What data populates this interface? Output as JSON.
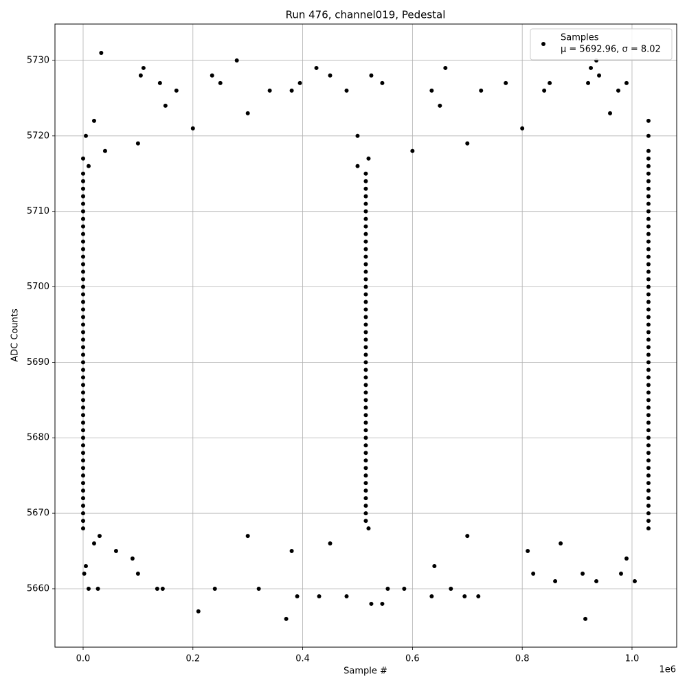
{
  "chart_data": {
    "type": "scatter",
    "title": "Run 476, channel019, Pedestal",
    "x_label": "Sample #",
    "y_label": "ADC Counts",
    "x_offset_label": "1e6",
    "xlim": [
      -51300,
      1081400
    ],
    "ylim": [
      5652.26,
      5734.82
    ],
    "xticks": [
      {
        "value": 0,
        "label": "0.0"
      },
      {
        "value": 200000,
        "label": "0.2"
      },
      {
        "value": 400000,
        "label": "0.4"
      },
      {
        "value": 600000,
        "label": "0.6"
      },
      {
        "value": 800000,
        "label": "0.8"
      },
      {
        "value": 1000000,
        "label": "1.0"
      }
    ],
    "yticks": [
      5660,
      5670,
      5680,
      5690,
      5700,
      5710,
      5720,
      5730
    ],
    "grid": true,
    "legend": "upper right",
    "annotation": "μ = 5692.96, σ = 8.02",
    "series": [
      {
        "name": "Samples",
        "color": "#000000",
        "x": [
          33000,
          280000,
          110000,
          425000,
          660000,
          935000,
          925000,
          235000,
          105000,
          450000,
          525000,
          940000,
          140000,
          250000,
          395000,
          545000,
          770000,
          850000,
          920000,
          990000,
          170000,
          340000,
          380000,
          480000,
          635000,
          725000,
          840000,
          975000,
          370000,
          915000,
          210000,
          525000,
          545000,
          390000,
          430000,
          480000,
          635000,
          695000,
          720000,
          10000,
          27000,
          135000,
          145000,
          240000,
          320000,
          555000,
          585000,
          670000,
          2000,
          100000,
          860000,
          935000,
          1005000,
          820000,
          980000,
          910000,
          5000,
          640000,
          90000,
          990000,
          60000,
          380000,
          810000,
          20000,
          450000,
          870000,
          30000,
          300000,
          700000,
          0,
          520000,
          1030000,
          0,
          515000,
          1030000,
          0,
          515000,
          1030000,
          0,
          515000,
          1030000,
          0,
          515000,
          1030000,
          0,
          515000,
          1030000,
          0,
          515000,
          1030000,
          0,
          515000,
          1030000,
          0,
          515000,
          1030000,
          0,
          515000,
          1030000,
          0,
          515000,
          1030000,
          0,
          515000,
          1030000,
          0,
          515000,
          1030000,
          0,
          515000,
          1030000,
          0,
          515000,
          1030000,
          0,
          515000,
          1030000,
          0,
          515000,
          1030000,
          0,
          515000,
          1030000,
          0,
          515000,
          1030000,
          0,
          515000,
          1030000,
          0,
          515000,
          1030000,
          0,
          515000,
          1030000,
          0,
          515000,
          1030000,
          0,
          515000,
          1030000,
          0,
          515000,
          1030000,
          0,
          515000,
          1030000,
          0,
          515000,
          1030000,
          0,
          515000,
          1030000,
          0,
          515000,
          1030000,
          0,
          515000,
          1030000,
          0,
          515000,
          1030000,
          0,
          515000,
          1030000,
          0,
          515000,
          1030000,
          0,
          515000,
          1030000,
          0,
          515000,
          1030000,
          0,
          515000,
          1030000,
          0,
          515000,
          1030000,
          0,
          515000,
          1030000,
          0,
          515000,
          1030000,
          0,
          515000,
          1030000,
          0,
          515000,
          1030000,
          0,
          515000,
          1030000,
          0,
          515000,
          1030000,
          0,
          515000,
          1030000,
          0,
          515000,
          1030000,
          0,
          515000,
          1030000,
          0,
          515000,
          1030000,
          0,
          515000,
          1030000,
          10000,
          500000,
          1030000,
          0,
          520000,
          1030000,
          40000,
          600000,
          1030000,
          100000,
          700000,
          5000,
          500000,
          1030000,
          200000,
          800000,
          20000,
          1030000,
          300000,
          960000,
          150000,
          650000
        ],
        "values": [
          5731,
          5730,
          5729,
          5729,
          5729,
          5730,
          5729,
          5728,
          5728,
          5728,
          5728,
          5728,
          5727,
          5727,
          5727,
          5727,
          5727,
          5727,
          5727,
          5727,
          5726,
          5726,
          5726,
          5726,
          5726,
          5726,
          5726,
          5726,
          5656,
          5656,
          5657,
          5658,
          5658,
          5659,
          5659,
          5659,
          5659,
          5659,
          5659,
          5660,
          5660,
          5660,
          5660,
          5660,
          5660,
          5660,
          5660,
          5660,
          5662,
          5662,
          5661,
          5661,
          5661,
          5662,
          5662,
          5662,
          5663,
          5663,
          5664,
          5664,
          5665,
          5665,
          5665,
          5666,
          5666,
          5666,
          5667,
          5667,
          5667,
          5668,
          5668,
          5668,
          5669,
          5669,
          5669,
          5670,
          5670,
          5670,
          5671,
          5671,
          5671,
          5672,
          5672,
          5672,
          5673,
          5673,
          5673,
          5674,
          5674,
          5674,
          5675,
          5675,
          5675,
          5676,
          5676,
          5676,
          5677,
          5677,
          5677,
          5678,
          5678,
          5678,
          5679,
          5679,
          5679,
          5680,
          5680,
          5680,
          5681,
          5681,
          5681,
          5682,
          5682,
          5682,
          5683,
          5683,
          5683,
          5684,
          5684,
          5684,
          5685,
          5685,
          5685,
          5686,
          5686,
          5686,
          5687,
          5687,
          5687,
          5688,
          5688,
          5688,
          5689,
          5689,
          5689,
          5690,
          5690,
          5690,
          5691,
          5691,
          5691,
          5692,
          5692,
          5692,
          5693,
          5693,
          5693,
          5694,
          5694,
          5694,
          5695,
          5695,
          5695,
          5696,
          5696,
          5696,
          5697,
          5697,
          5697,
          5698,
          5698,
          5698,
          5699,
          5699,
          5699,
          5700,
          5700,
          5700,
          5701,
          5701,
          5701,
          5702,
          5702,
          5702,
          5703,
          5703,
          5703,
          5704,
          5704,
          5704,
          5705,
          5705,
          5705,
          5706,
          5706,
          5706,
          5707,
          5707,
          5707,
          5708,
          5708,
          5708,
          5709,
          5709,
          5709,
          5710,
          5710,
          5710,
          5711,
          5711,
          5711,
          5712,
          5712,
          5712,
          5713,
          5713,
          5713,
          5714,
          5714,
          5714,
          5715,
          5715,
          5715,
          5716,
          5716,
          5716,
          5717,
          5717,
          5717,
          5718,
          5718,
          5718,
          5719,
          5719,
          5720,
          5720,
          5720,
          5721,
          5721,
          5722,
          5722,
          5723,
          5723,
          5724,
          5724
        ]
      }
    ]
  }
}
